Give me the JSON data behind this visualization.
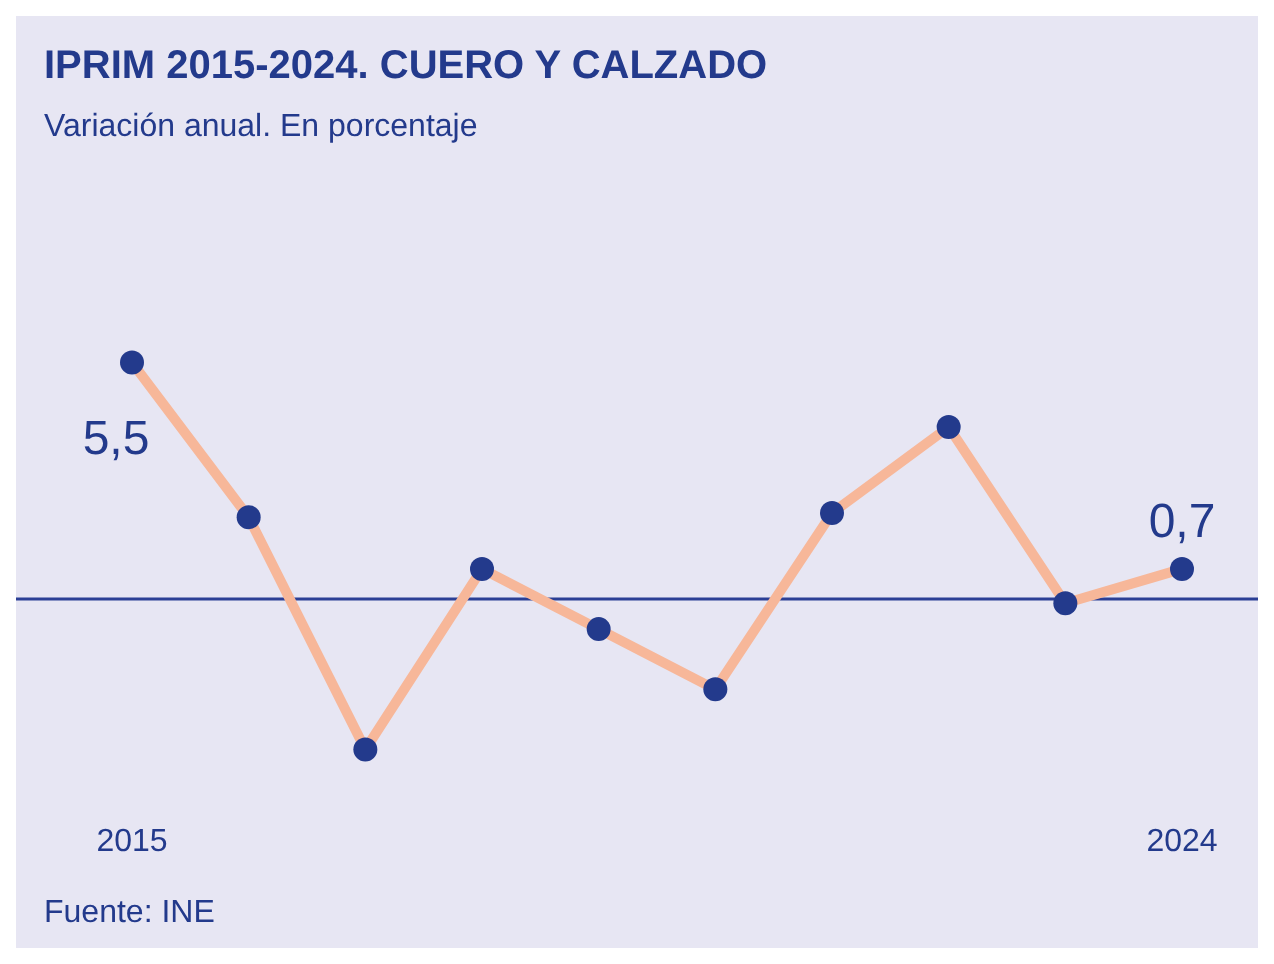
{
  "chart_data": {
    "type": "line",
    "title": "IPRIM 2015-2024. CUERO Y CALZADO",
    "subtitle": "Variación anual. En porcentaje",
    "categories": [
      "2015",
      null,
      null,
      null,
      null,
      null,
      null,
      null,
      null,
      "2024"
    ],
    "series": [
      {
        "color": "#f7b799",
        "values": [
          5.5,
          1.9,
          -3.5,
          0.7,
          -0.7,
          -2.1,
          2.0,
          4.0,
          -0.1,
          0.7
        ],
        "value_labels": [
          "5,5",
          null,
          null,
          null,
          null,
          null,
          null,
          null,
          null,
          "0,7"
        ]
      }
    ],
    "marker": "circle",
    "ref_lines": [
      {
        "axis": "y",
        "value": 0,
        "color": "#2b3f95"
      }
    ],
    "grid": false,
    "legend": false,
    "annotations": [
      "Fuente: INE"
    ]
  }
}
